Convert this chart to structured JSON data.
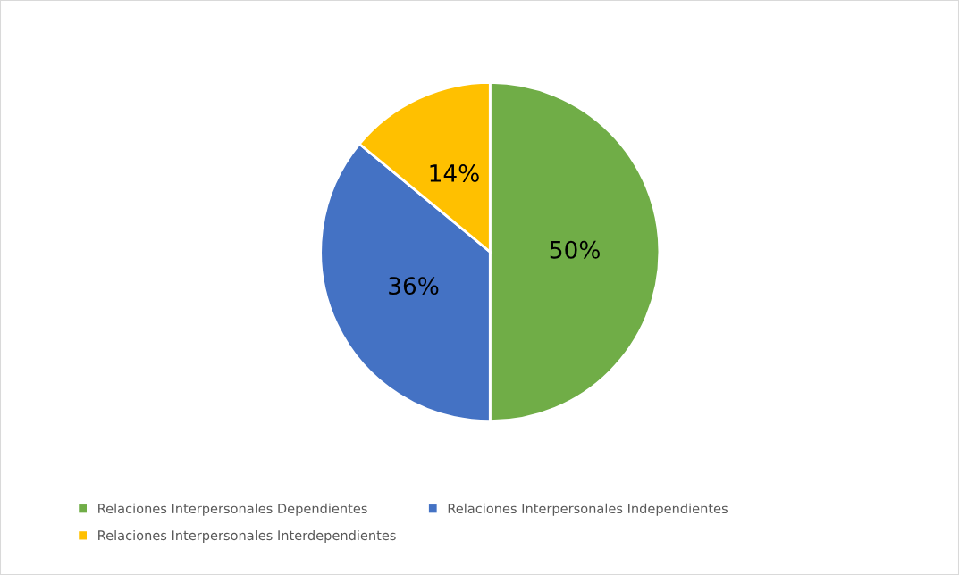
{
  "chart_data": {
    "type": "pie",
    "categories": [
      "Relaciones Interpersonales Dependientes",
      "Relaciones Interpersonales Independientes",
      "Relaciones Interpersonales Interdependientes"
    ],
    "values": [
      50,
      36,
      14
    ],
    "value_labels": [
      "50%",
      "36%",
      "14%"
    ],
    "colors": [
      "#70ad47",
      "#4472c4",
      "#ffc000"
    ],
    "legend": "bottom"
  }
}
